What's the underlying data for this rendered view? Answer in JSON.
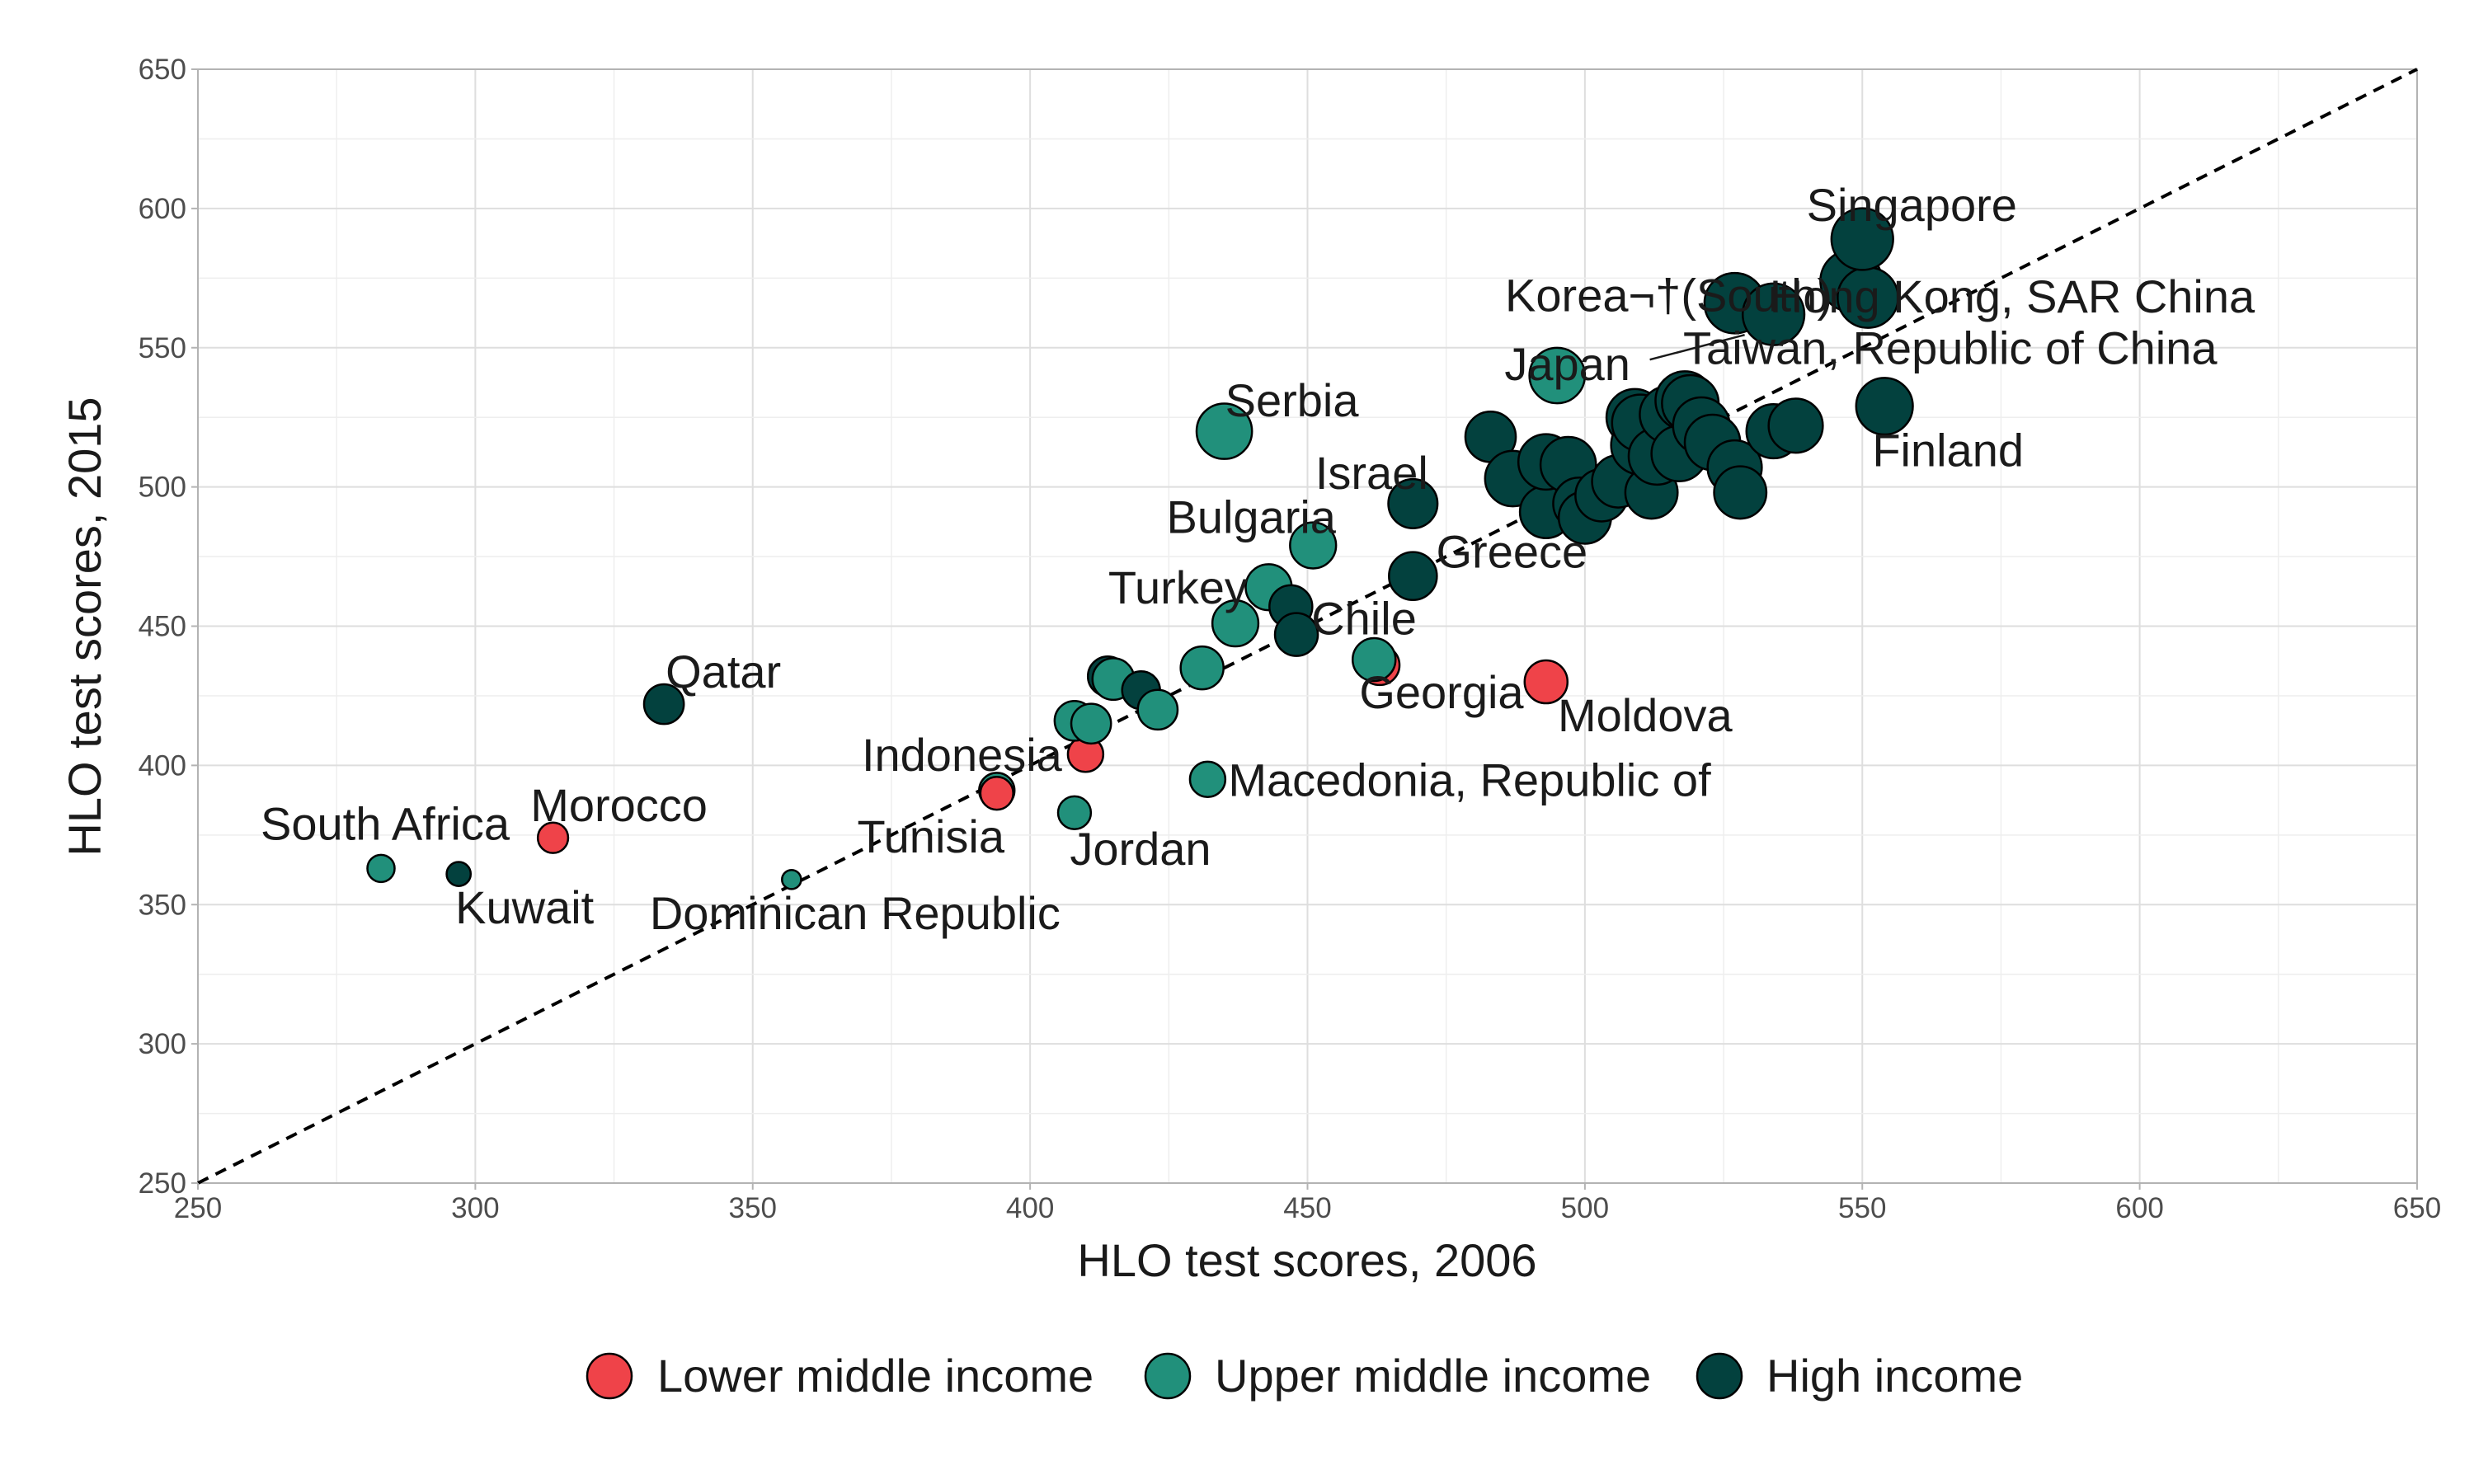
{
  "chart_data": {
    "type": "scatter",
    "xlabel": "HLO test scores, 2006",
    "ylabel": "HLO test scores, 2015",
    "xlim": [
      250,
      650
    ],
    "ylim": [
      250,
      650
    ],
    "x_ticks": [
      250,
      300,
      350,
      400,
      450,
      500,
      550,
      600,
      650
    ],
    "y_ticks": [
      250,
      300,
      350,
      400,
      450,
      500,
      550,
      600,
      650
    ],
    "grid": true,
    "reference_line": "y = x (dashed)",
    "legend": {
      "position": "bottom",
      "items": [
        {
          "key": "lmi",
          "label": "Lower middle income",
          "color": "#ef4349"
        },
        {
          "key": "umi",
          "label": "Upper middle income",
          "color": "#21907b"
        },
        {
          "key": "hi",
          "label": "High income",
          "color": "#03413e"
        }
      ]
    },
    "points": [
      {
        "x": 283,
        "y": 363,
        "group": "umi",
        "size": 0.25,
        "label": "South Africa"
      },
      {
        "x": 297,
        "y": 361,
        "group": "hi",
        "size": 0.2,
        "label": "Kuwait"
      },
      {
        "x": 314,
        "y": 374,
        "group": "lmi",
        "size": 0.3,
        "label": "Morocco"
      },
      {
        "x": 334,
        "y": 422,
        "group": "hi",
        "size": 0.45,
        "label": "Qatar"
      },
      {
        "x": 357,
        "y": 359,
        "group": "umi",
        "size": 0.12,
        "label": "Dominican Republic"
      },
      {
        "x": 394,
        "y": 391,
        "group": "umi",
        "size": 0.38,
        "label": "Tunisia"
      },
      {
        "x": 394,
        "y": 390,
        "group": "lmi",
        "size": 0.34,
        "label": ""
      },
      {
        "x": 410,
        "y": 404,
        "group": "lmi",
        "size": 0.38,
        "label": "Indonesia"
      },
      {
        "x": 408,
        "y": 383,
        "group": "umi",
        "size": 0.34,
        "label": "Jordan"
      },
      {
        "x": 408,
        "y": 416,
        "group": "umi",
        "size": 0.45,
        "label": ""
      },
      {
        "x": 411,
        "y": 415,
        "group": "umi",
        "size": 0.45,
        "label": ""
      },
      {
        "x": 414,
        "y": 432,
        "group": "hi",
        "size": 0.45,
        "label": ""
      },
      {
        "x": 415,
        "y": 431,
        "group": "umi",
        "size": 0.48,
        "label": ""
      },
      {
        "x": 420,
        "y": 427,
        "group": "hi",
        "size": 0.42,
        "label": ""
      },
      {
        "x": 423,
        "y": 420,
        "group": "umi",
        "size": 0.45,
        "label": ""
      },
      {
        "x": 431,
        "y": 435,
        "group": "umi",
        "size": 0.5,
        "label": ""
      },
      {
        "x": 432,
        "y": 395,
        "group": "umi",
        "size": 0.38,
        "label": "Macedonia, Republic of"
      },
      {
        "x": 435,
        "y": 520,
        "group": "umi",
        "size": 0.7,
        "label": "Serbia"
      },
      {
        "x": 437,
        "y": 451,
        "group": "umi",
        "size": 0.55,
        "label": ""
      },
      {
        "x": 443,
        "y": 464,
        "group": "umi",
        "size": 0.55,
        "label": "Turkey"
      },
      {
        "x": 447,
        "y": 457,
        "group": "hi",
        "size": 0.5,
        "label": ""
      },
      {
        "x": 448,
        "y": 447,
        "group": "hi",
        "size": 0.5,
        "label": "Chile"
      },
      {
        "x": 451,
        "y": 479,
        "group": "umi",
        "size": 0.55,
        "label": "Bulgaria"
      },
      {
        "x": 463,
        "y": 436,
        "group": "lmi",
        "size": 0.45,
        "label": "Georgia"
      },
      {
        "x": 462,
        "y": 438,
        "group": "umi",
        "size": 0.5,
        "label": ""
      },
      {
        "x": 469,
        "y": 494,
        "group": "hi",
        "size": 0.6,
        "label": "Israel"
      },
      {
        "x": 469,
        "y": 468,
        "group": "hi",
        "size": 0.58,
        "label": "Greece"
      },
      {
        "x": 483,
        "y": 518,
        "group": "hi",
        "size": 0.62,
        "label": ""
      },
      {
        "x": 487,
        "y": 503,
        "group": "hi",
        "size": 0.7,
        "label": ""
      },
      {
        "x": 493,
        "y": 430,
        "group": "lmi",
        "size": 0.5,
        "label": "Moldova"
      },
      {
        "x": 493,
        "y": 491,
        "group": "hi",
        "size": 0.65,
        "label": ""
      },
      {
        "x": 493,
        "y": 509,
        "group": "hi",
        "size": 0.7,
        "label": ""
      },
      {
        "x": 495,
        "y": 540,
        "group": "umi",
        "size": 0.7,
        "label": ""
      },
      {
        "x": 497,
        "y": 508,
        "group": "hi",
        "size": 0.7,
        "label": ""
      },
      {
        "x": 499,
        "y": 494,
        "group": "hi",
        "size": 0.65,
        "label": ""
      },
      {
        "x": 500,
        "y": 489,
        "group": "hi",
        "size": 0.65,
        "label": ""
      },
      {
        "x": 503,
        "y": 497,
        "group": "hi",
        "size": 0.65,
        "label": ""
      },
      {
        "x": 506,
        "y": 502,
        "group": "hi",
        "size": 0.65,
        "label": ""
      },
      {
        "x": 509,
        "y": 525,
        "group": "hi",
        "size": 0.72,
        "label": ""
      },
      {
        "x": 510,
        "y": 515,
        "group": "hi",
        "size": 0.75,
        "label": ""
      },
      {
        "x": 510,
        "y": 523,
        "group": "hi",
        "size": 0.72,
        "label": ""
      },
      {
        "x": 512,
        "y": 498,
        "group": "hi",
        "size": 0.65,
        "label": ""
      },
      {
        "x": 513,
        "y": 511,
        "group": "hi",
        "size": 0.72,
        "label": ""
      },
      {
        "x": 515,
        "y": 526,
        "group": "hi",
        "size": 0.72,
        "label": ""
      },
      {
        "x": 517,
        "y": 512,
        "group": "hi",
        "size": 0.7,
        "label": ""
      },
      {
        "x": 518,
        "y": 531,
        "group": "hi",
        "size": 0.75,
        "label": ""
      },
      {
        "x": 519,
        "y": 530,
        "group": "hi",
        "size": 0.72,
        "label": ""
      },
      {
        "x": 521,
        "y": 522,
        "group": "hi",
        "size": 0.72,
        "label": ""
      },
      {
        "x": 523,
        "y": 516,
        "group": "hi",
        "size": 0.7,
        "label": ""
      },
      {
        "x": 527,
        "y": 507,
        "group": "hi",
        "size": 0.68,
        "label": ""
      },
      {
        "x": 528,
        "y": 498,
        "group": "hi",
        "size": 0.65,
        "label": ""
      },
      {
        "x": 527,
        "y": 566,
        "group": "hi",
        "size": 0.78,
        "label": "Korea¬†(South)"
      },
      {
        "x": 534,
        "y": 520,
        "group": "hi",
        "size": 0.68,
        "label": ""
      },
      {
        "x": 534,
        "y": 562,
        "group": "hi",
        "size": 0.8,
        "label": "Japan"
      },
      {
        "x": 538,
        "y": 522,
        "group": "hi",
        "size": 0.68,
        "label": ""
      },
      {
        "x": 548,
        "y": 574,
        "group": "hi",
        "size": 0.8,
        "label": "Taiwan, Republic of China"
      },
      {
        "x": 551,
        "y": 568,
        "group": "hi",
        "size": 0.78,
        "label": "Hong Kong, SAR China"
      },
      {
        "x": 550,
        "y": 589,
        "group": "hi",
        "size": 0.8,
        "label": "Singapore"
      },
      {
        "x": 554,
        "y": 529,
        "group": "hi",
        "size": 0.72,
        "label": "Finland"
      }
    ]
  }
}
